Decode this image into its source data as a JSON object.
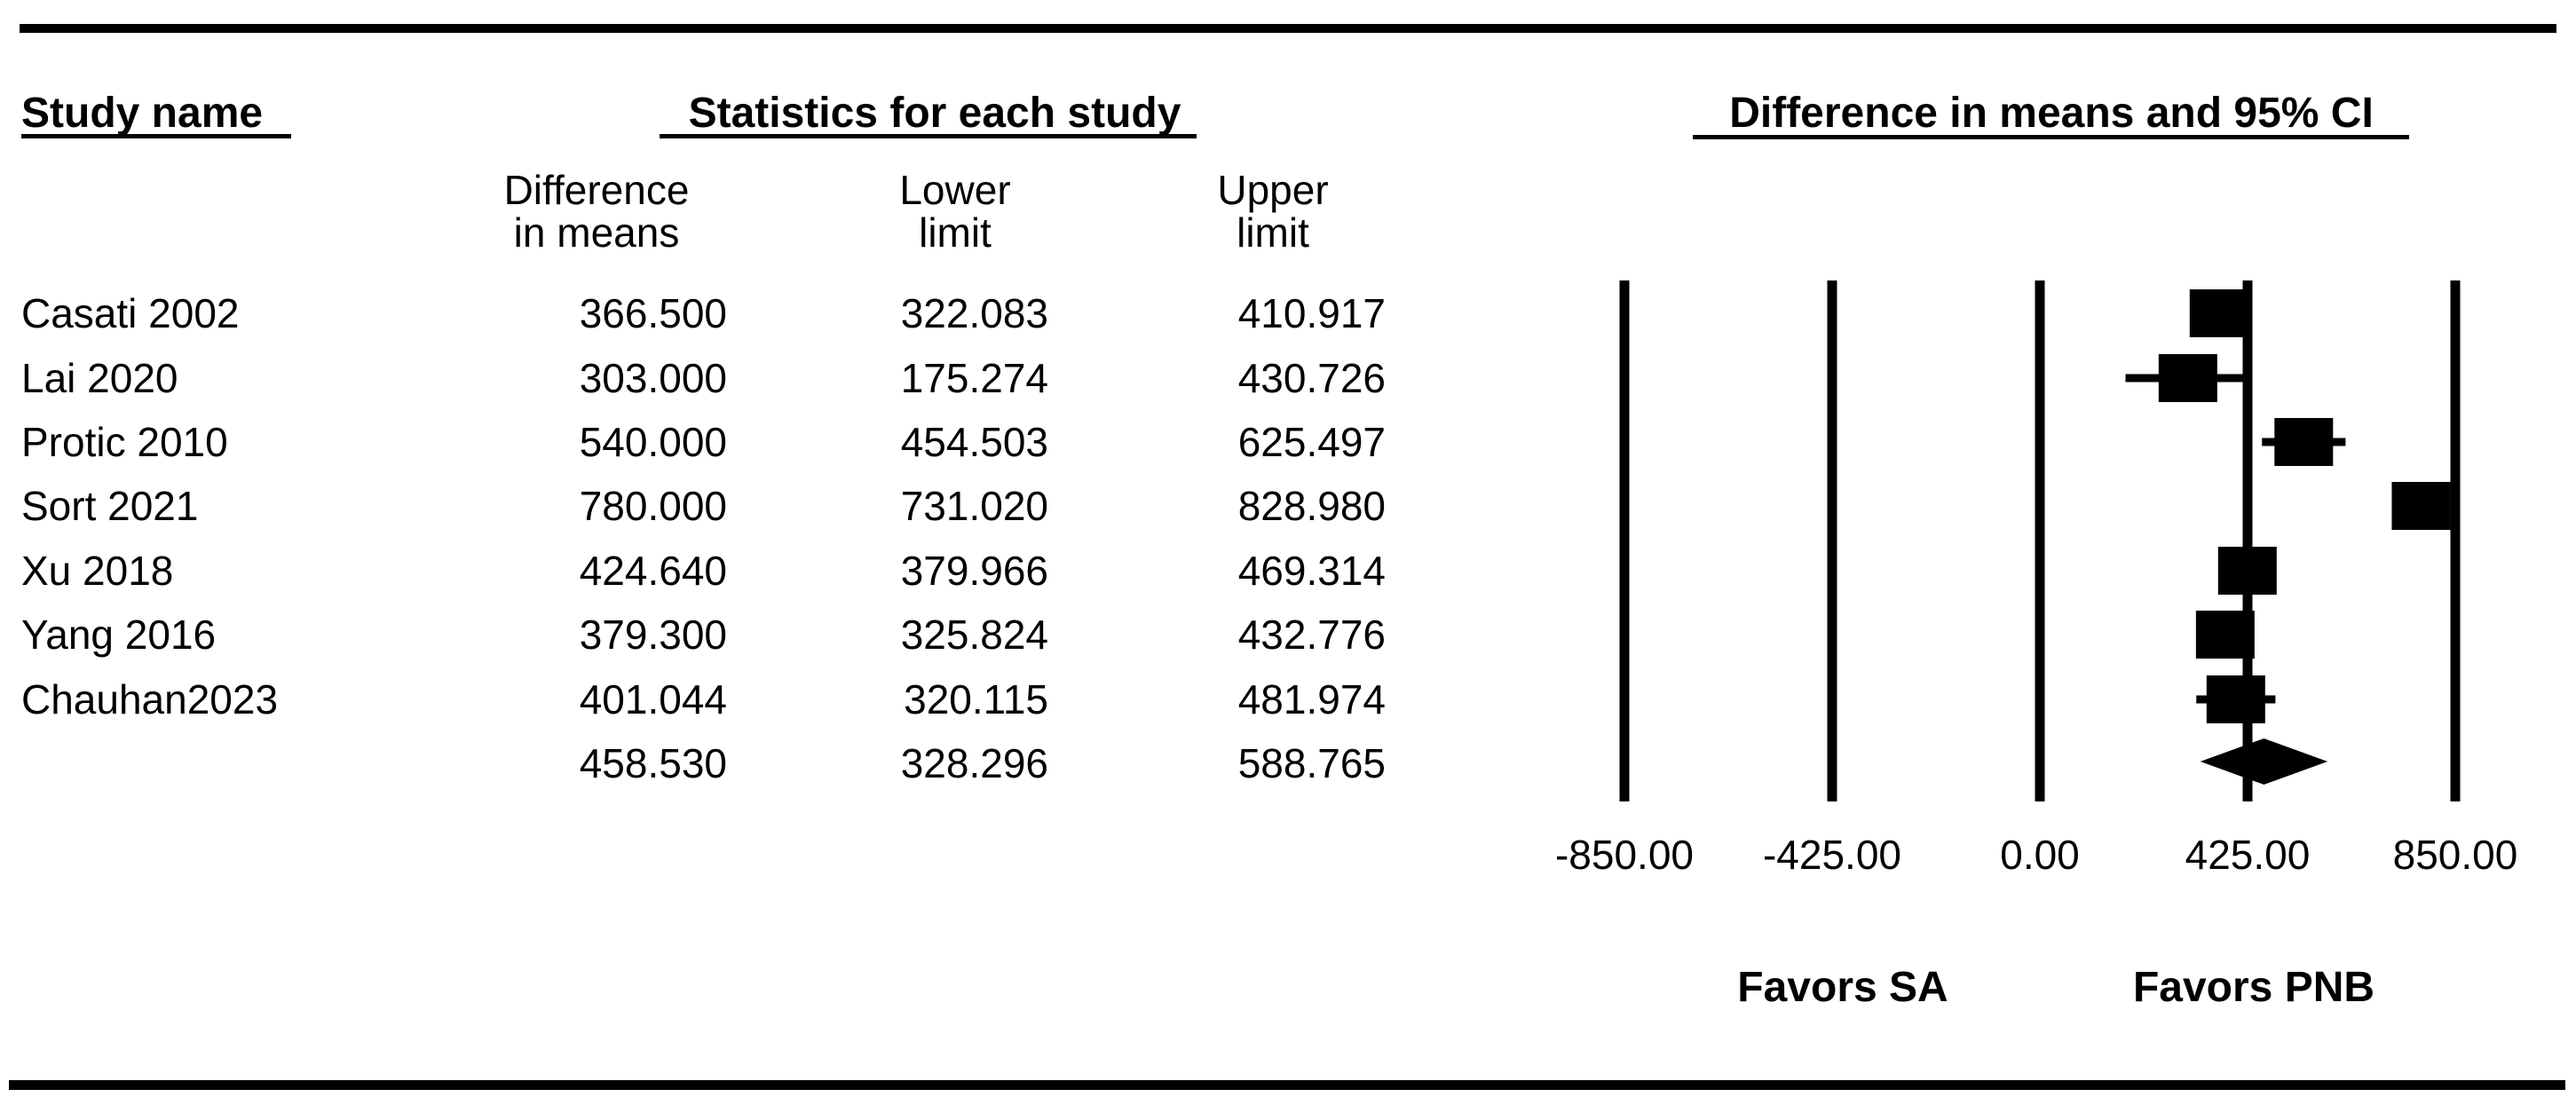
{
  "table": {
    "study_col_header": "Study name",
    "stats_header": "Statistics for each study",
    "col_diff": {
      "line1": "Difference",
      "line2": "in means"
    },
    "col_lower": {
      "line1": "Lower",
      "line2": "limit"
    },
    "col_upper": {
      "line1": "Upper",
      "line2": "limit"
    },
    "rows": [
      {
        "name": "Casati 2002",
        "diff": "366.500",
        "lower": "322.083",
        "upper": "410.917"
      },
      {
        "name": "Lai 2020",
        "diff": "303.000",
        "lower": "175.274",
        "upper": "430.726"
      },
      {
        "name": "Protic 2010",
        "diff": "540.000",
        "lower": "454.503",
        "upper": "625.497"
      },
      {
        "name": "Sort 2021",
        "diff": "780.000",
        "lower": "731.020",
        "upper": "828.980"
      },
      {
        "name": "Xu 2018",
        "diff": "424.640",
        "lower": "379.966",
        "upper": "469.314"
      },
      {
        "name": "Yang 2016",
        "diff": "379.300",
        "lower": "325.824",
        "upper": "432.776"
      },
      {
        "name": "Chauhan2023",
        "diff": "401.044",
        "lower": "320.115",
        "upper": "481.974"
      },
      {
        "name": "",
        "diff": "458.530",
        "lower": "328.296",
        "upper": "588.765"
      }
    ]
  },
  "chart_data": {
    "type": "forest",
    "title": "Difference in means and 95% CI",
    "x_axis": {
      "min": -850,
      "max": 850,
      "ticks": [
        {
          "value": -850,
          "label": "-850.00"
        },
        {
          "value": -425,
          "label": "-425.00"
        },
        {
          "value": 0,
          "label": "0.00"
        },
        {
          "value": 425,
          "label": "425.00"
        },
        {
          "value": 850,
          "label": "850.00"
        }
      ]
    },
    "studies": [
      {
        "name": "Casati 2002",
        "mean": 366.5,
        "lower": 322.083,
        "upper": 410.917
      },
      {
        "name": "Lai 2020",
        "mean": 303.0,
        "lower": 175.274,
        "upper": 430.726
      },
      {
        "name": "Protic 2010",
        "mean": 540.0,
        "lower": 454.503,
        "upper": 625.497
      },
      {
        "name": "Sort 2021",
        "mean": 780.0,
        "lower": 731.02,
        "upper": 828.98
      },
      {
        "name": "Xu 2018",
        "mean": 424.64,
        "lower": 379.966,
        "upper": 469.314
      },
      {
        "name": "Yang 2016",
        "mean": 379.3,
        "lower": 325.824,
        "upper": 432.776
      },
      {
        "name": "Chauhan2023",
        "mean": 401.044,
        "lower": 320.115,
        "upper": 481.974
      }
    ],
    "summary": {
      "mean": 458.53,
      "lower": 328.296,
      "upper": 588.765
    },
    "footer_left": "Favors SA",
    "footer_right": "Favors PNB",
    "marker_color": "#000000"
  }
}
